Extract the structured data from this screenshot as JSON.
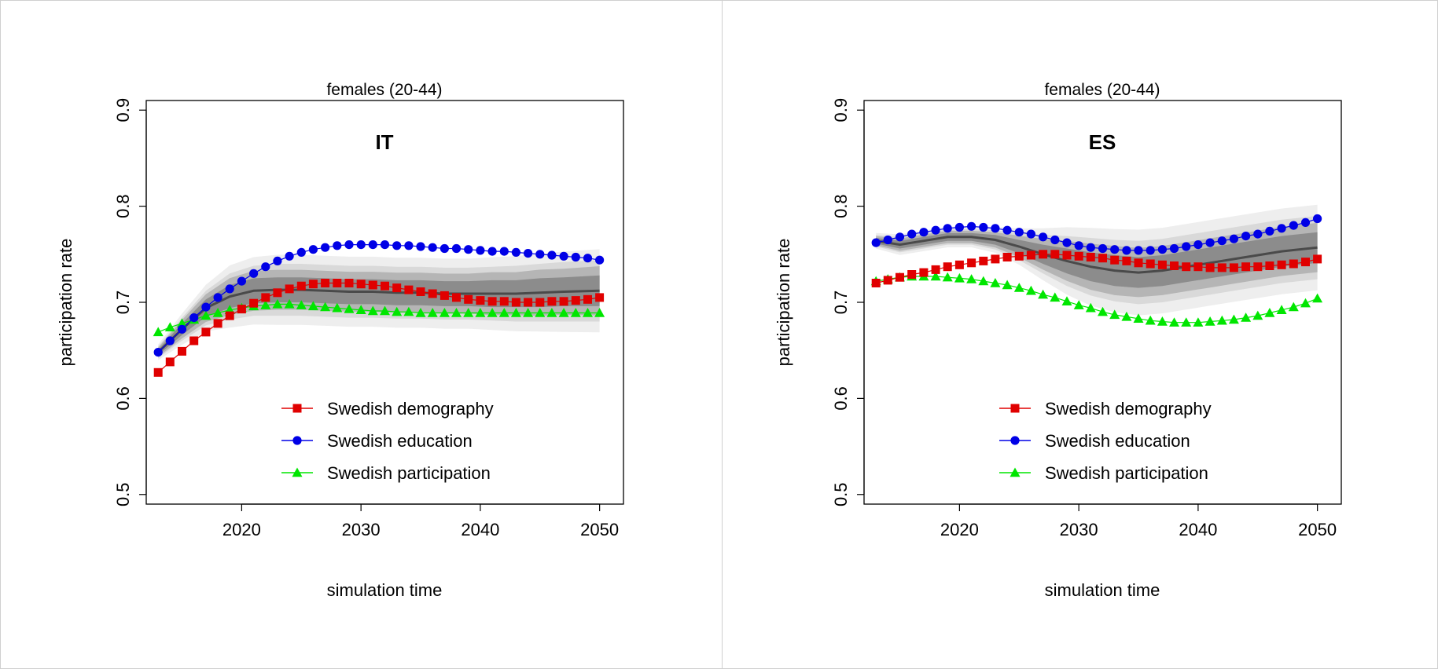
{
  "chart_data": [
    {
      "type": "line",
      "title": "females (20-44)",
      "panel_label": "IT",
      "xlabel": "simulation time",
      "ylabel": "participation rate",
      "xlim": [
        2012,
        2052
      ],
      "ylim": [
        0.49,
        0.91
      ],
      "xticks": [
        2020,
        2030,
        2040,
        2050
      ],
      "yticks": [
        0.5,
        0.6,
        0.7,
        0.8,
        0.9
      ],
      "legend_position": "bottom-center",
      "grid": false,
      "series": [
        {
          "name": "Swedish demography",
          "color": "#e00000",
          "marker": "square",
          "x": [
            2013,
            2014,
            2015,
            2016,
            2017,
            2018,
            2019,
            2020,
            2021,
            2022,
            2023,
            2024,
            2025,
            2026,
            2027,
            2028,
            2029,
            2030,
            2031,
            2032,
            2033,
            2034,
            2035,
            2036,
            2037,
            2038,
            2039,
            2040,
            2041,
            2042,
            2043,
            2044,
            2045,
            2046,
            2047,
            2048,
            2049,
            2050
          ],
          "values": [
            0.627,
            0.638,
            0.649,
            0.66,
            0.669,
            0.678,
            0.686,
            0.693,
            0.699,
            0.705,
            0.71,
            0.714,
            0.717,
            0.719,
            0.72,
            0.72,
            0.72,
            0.719,
            0.718,
            0.717,
            0.715,
            0.713,
            0.711,
            0.709,
            0.707,
            0.705,
            0.703,
            0.702,
            0.701,
            0.701,
            0.7,
            0.7,
            0.7,
            0.701,
            0.701,
            0.702,
            0.703,
            0.705
          ]
        },
        {
          "name": "Swedish education",
          "color": "#0000e6",
          "marker": "circle",
          "x": [
            2013,
            2014,
            2015,
            2016,
            2017,
            2018,
            2019,
            2020,
            2021,
            2022,
            2023,
            2024,
            2025,
            2026,
            2027,
            2028,
            2029,
            2030,
            2031,
            2032,
            2033,
            2034,
            2035,
            2036,
            2037,
            2038,
            2039,
            2040,
            2041,
            2042,
            2043,
            2044,
            2045,
            2046,
            2047,
            2048,
            2049,
            2050
          ],
          "values": [
            0.648,
            0.66,
            0.672,
            0.684,
            0.695,
            0.705,
            0.714,
            0.722,
            0.73,
            0.737,
            0.743,
            0.748,
            0.752,
            0.755,
            0.757,
            0.759,
            0.76,
            0.76,
            0.76,
            0.76,
            0.759,
            0.759,
            0.758,
            0.757,
            0.756,
            0.756,
            0.755,
            0.754,
            0.753,
            0.753,
            0.752,
            0.751,
            0.75,
            0.749,
            0.748,
            0.747,
            0.746,
            0.744
          ]
        },
        {
          "name": "Swedish participation",
          "color": "#00e600",
          "marker": "triangle",
          "x": [
            2013,
            2014,
            2015,
            2016,
            2017,
            2018,
            2019,
            2020,
            2021,
            2022,
            2023,
            2024,
            2025,
            2026,
            2027,
            2028,
            2029,
            2030,
            2031,
            2032,
            2033,
            2034,
            2035,
            2036,
            2037,
            2038,
            2039,
            2040,
            2041,
            2042,
            2043,
            2044,
            2045,
            2046,
            2047,
            2048,
            2049,
            2050
          ],
          "values": [
            0.669,
            0.674,
            0.678,
            0.682,
            0.686,
            0.689,
            0.692,
            0.694,
            0.696,
            0.697,
            0.698,
            0.698,
            0.697,
            0.696,
            0.695,
            0.694,
            0.693,
            0.692,
            0.691,
            0.691,
            0.69,
            0.69,
            0.689,
            0.689,
            0.689,
            0.689,
            0.689,
            0.689,
            0.689,
            0.689,
            0.689,
            0.689,
            0.689,
            0.689,
            0.689,
            0.689,
            0.689,
            0.689
          ]
        }
      ],
      "band": {
        "x": [
          2013,
          2015,
          2017,
          2019,
          2021,
          2023,
          2025,
          2027,
          2029,
          2031,
          2033,
          2035,
          2037,
          2039,
          2041,
          2043,
          2045,
          2047,
          2050
        ],
        "center": [
          0.648,
          0.672,
          0.694,
          0.706,
          0.712,
          0.713,
          0.713,
          0.712,
          0.711,
          0.711,
          0.71,
          0.71,
          0.709,
          0.709,
          0.709,
          0.709,
          0.71,
          0.711,
          0.712
        ],
        "inner_half": [
          0.003,
          0.006,
          0.009,
          0.012,
          0.013,
          0.013,
          0.013,
          0.013,
          0.013,
          0.013,
          0.013,
          0.013,
          0.013,
          0.013,
          0.014,
          0.014,
          0.015,
          0.015,
          0.016
        ],
        "outer_half": [
          0.006,
          0.012,
          0.018,
          0.024,
          0.026,
          0.027,
          0.027,
          0.027,
          0.027,
          0.027,
          0.027,
          0.027,
          0.027,
          0.027,
          0.028,
          0.029,
          0.03,
          0.031,
          0.032
        ]
      }
    },
    {
      "type": "line",
      "title": "females (20-44)",
      "panel_label": "ES",
      "xlabel": "simulation time",
      "ylabel": "participation rate",
      "xlim": [
        2012,
        2052
      ],
      "ylim": [
        0.49,
        0.91
      ],
      "xticks": [
        2020,
        2030,
        2040,
        2050
      ],
      "yticks": [
        0.5,
        0.6,
        0.7,
        0.8,
        0.9
      ],
      "legend_position": "bottom-center",
      "grid": false,
      "series": [
        {
          "name": "Swedish demography",
          "color": "#e00000",
          "marker": "square",
          "x": [
            2013,
            2014,
            2015,
            2016,
            2017,
            2018,
            2019,
            2020,
            2021,
            2022,
            2023,
            2024,
            2025,
            2026,
            2027,
            2028,
            2029,
            2030,
            2031,
            2032,
            2033,
            2034,
            2035,
            2036,
            2037,
            2038,
            2039,
            2040,
            2041,
            2042,
            2043,
            2044,
            2045,
            2046,
            2047,
            2048,
            2049,
            2050
          ],
          "values": [
            0.72,
            0.723,
            0.726,
            0.729,
            0.731,
            0.734,
            0.737,
            0.739,
            0.741,
            0.743,
            0.745,
            0.747,
            0.748,
            0.749,
            0.75,
            0.75,
            0.749,
            0.748,
            0.747,
            0.746,
            0.744,
            0.743,
            0.741,
            0.74,
            0.739,
            0.738,
            0.737,
            0.737,
            0.736,
            0.736,
            0.736,
            0.737,
            0.737,
            0.738,
            0.739,
            0.74,
            0.742,
            0.745
          ]
        },
        {
          "name": "Swedish education",
          "color": "#0000e6",
          "marker": "circle",
          "x": [
            2013,
            2014,
            2015,
            2016,
            2017,
            2018,
            2019,
            2020,
            2021,
            2022,
            2023,
            2024,
            2025,
            2026,
            2027,
            2028,
            2029,
            2030,
            2031,
            2032,
            2033,
            2034,
            2035,
            2036,
            2037,
            2038,
            2039,
            2040,
            2041,
            2042,
            2043,
            2044,
            2045,
            2046,
            2047,
            2048,
            2049,
            2050
          ],
          "values": [
            0.762,
            0.765,
            0.768,
            0.771,
            0.773,
            0.775,
            0.777,
            0.778,
            0.779,
            0.778,
            0.777,
            0.775,
            0.773,
            0.771,
            0.768,
            0.765,
            0.762,
            0.759,
            0.757,
            0.756,
            0.755,
            0.754,
            0.754,
            0.754,
            0.755,
            0.756,
            0.758,
            0.76,
            0.762,
            0.764,
            0.766,
            0.769,
            0.771,
            0.774,
            0.777,
            0.78,
            0.783,
            0.787
          ]
        },
        {
          "name": "Swedish participation",
          "color": "#00e600",
          "marker": "triangle",
          "x": [
            2013,
            2014,
            2015,
            2016,
            2017,
            2018,
            2019,
            2020,
            2021,
            2022,
            2023,
            2024,
            2025,
            2026,
            2027,
            2028,
            2029,
            2030,
            2031,
            2032,
            2033,
            2034,
            2035,
            2036,
            2037,
            2038,
            2039,
            2040,
            2041,
            2042,
            2043,
            2044,
            2045,
            2046,
            2047,
            2048,
            2049,
            2050
          ],
          "values": [
            0.722,
            0.724,
            0.726,
            0.727,
            0.727,
            0.727,
            0.726,
            0.725,
            0.724,
            0.722,
            0.72,
            0.718,
            0.715,
            0.712,
            0.708,
            0.705,
            0.701,
            0.697,
            0.694,
            0.69,
            0.687,
            0.685,
            0.683,
            0.681,
            0.68,
            0.679,
            0.679,
            0.679,
            0.68,
            0.681,
            0.682,
            0.684,
            0.686,
            0.689,
            0.692,
            0.695,
            0.699,
            0.704
          ]
        }
      ],
      "band": {
        "x": [
          2013,
          2015,
          2017,
          2019,
          2021,
          2023,
          2025,
          2027,
          2029,
          2031,
          2033,
          2035,
          2037,
          2039,
          2041,
          2043,
          2045,
          2047,
          2050
        ],
        "center": [
          0.764,
          0.76,
          0.764,
          0.768,
          0.768,
          0.765,
          0.758,
          0.75,
          0.743,
          0.737,
          0.733,
          0.731,
          0.733,
          0.737,
          0.741,
          0.745,
          0.749,
          0.753,
          0.757
        ],
        "inner_half": [
          0.003,
          0.004,
          0.004,
          0.004,
          0.004,
          0.005,
          0.007,
          0.01,
          0.013,
          0.015,
          0.016,
          0.016,
          0.016,
          0.016,
          0.016,
          0.016,
          0.016,
          0.016,
          0.016
        ],
        "outer_half": [
          0.006,
          0.008,
          0.008,
          0.008,
          0.008,
          0.01,
          0.014,
          0.02,
          0.026,
          0.03,
          0.032,
          0.033,
          0.033,
          0.033,
          0.033,
          0.033,
          0.033,
          0.033,
          0.033
        ]
      }
    }
  ]
}
